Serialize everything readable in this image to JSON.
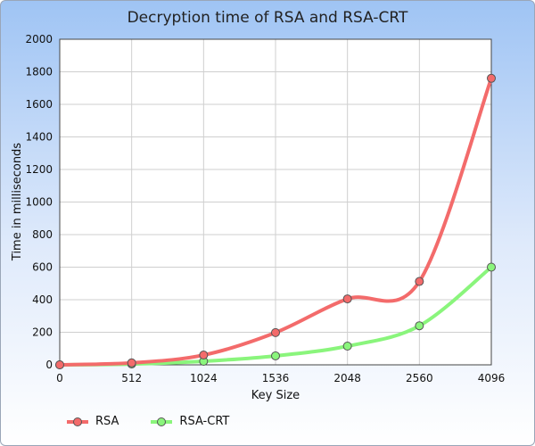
{
  "chart_data": {
    "type": "line",
    "title": "Decryption time of RSA and RSA-CRT",
    "xlabel": "Key Size",
    "ylabel": "Time in milliseconds",
    "categories": [
      "0",
      "512",
      "1024",
      "1536",
      "2048",
      "2560",
      "4096"
    ],
    "ylim": [
      0,
      2000
    ],
    "yticks": [
      "0",
      "200",
      "400",
      "600",
      "800",
      "1000",
      "1200",
      "1400",
      "1600",
      "1800",
      "2000"
    ],
    "grid": true,
    "legend_position": "bottom-left",
    "series": [
      {
        "name": "RSA",
        "color": "#f36b6b",
        "values": [
          0,
          12,
          60,
          198,
          405,
          512,
          1760
        ]
      },
      {
        "name": "RSA-CRT",
        "color": "#8af57c",
        "values": [
          0,
          5,
          22,
          55,
          115,
          240,
          600
        ]
      }
    ]
  }
}
